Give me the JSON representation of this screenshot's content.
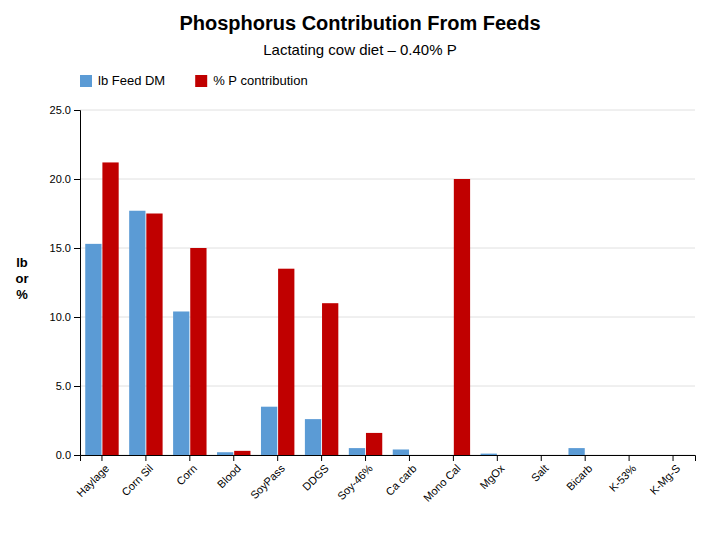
{
  "chart_data": {
    "type": "bar",
    "title": "Phosphorus Contribution From Feeds",
    "subtitle": "Lactating cow diet – 0.40% P",
    "ylabel": "lb\nor\n%",
    "categories": [
      "Haylage",
      "Corn Sil",
      "Corn",
      "Blood",
      "SoyPass",
      "DDGS",
      "Soy-46%",
      "Ca carb",
      "Mono Cal",
      "MgOx",
      "Salt",
      "Bicarb",
      "K-53%",
      "K-Mg-S"
    ],
    "series": [
      {
        "name": "lb Feed DM",
        "color": "#5B9BD5",
        "values": [
          15.3,
          17.7,
          10.4,
          0.2,
          3.5,
          2.6,
          0.5,
          0.4,
          0.0,
          0.1,
          0.0,
          0.5,
          0.0,
          0.0
        ]
      },
      {
        "name": "% P contribution",
        "color": "#C00000",
        "values": [
          21.2,
          17.5,
          15.0,
          0.3,
          13.5,
          11.0,
          1.6,
          0.0,
          20.0,
          0.0,
          0.0,
          0.0,
          0.0,
          0.0
        ]
      }
    ],
    "ylim": [
      0,
      25.0
    ],
    "yticks": [
      {
        "value": 0.0,
        "label": "0.0"
      },
      {
        "value": 5.0,
        "label": "5.0"
      },
      {
        "value": 10.0,
        "label": "10.0"
      },
      {
        "value": 15.0,
        "label": "15.0"
      },
      {
        "value": 20.0,
        "label": "20.0"
      },
      {
        "value": 25.0,
        "label": "25.0"
      }
    ],
    "grid": true,
    "legend": "top"
  }
}
